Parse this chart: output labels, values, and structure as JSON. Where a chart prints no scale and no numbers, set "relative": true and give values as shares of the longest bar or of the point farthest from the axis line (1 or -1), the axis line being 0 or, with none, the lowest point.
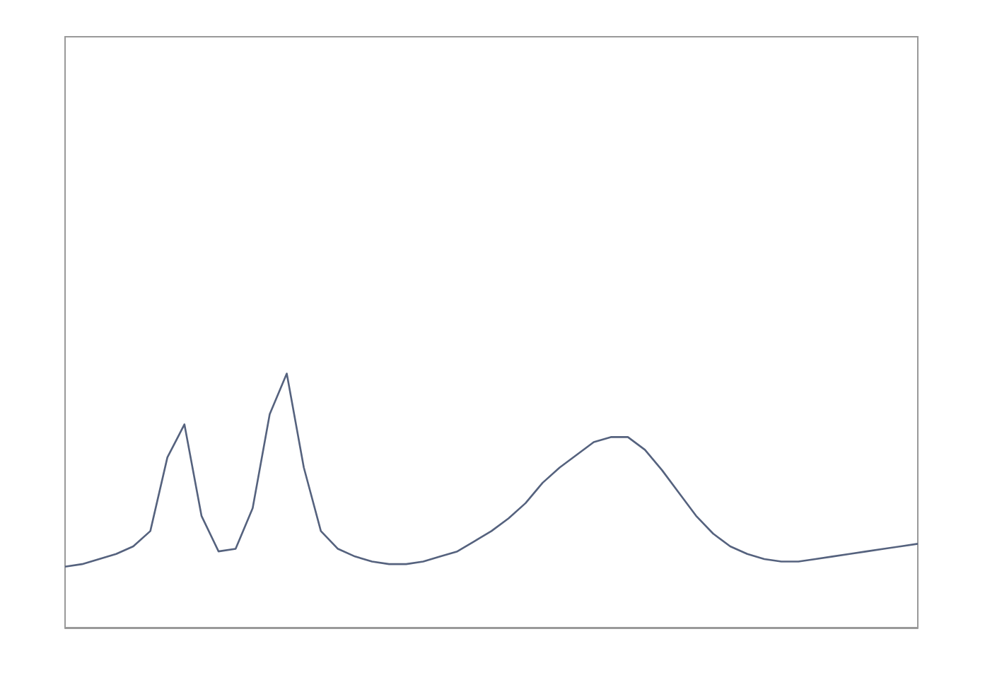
{
  "chart_data": {
    "type": "line",
    "relative": true,
    "categories": [
      null,
      null,
      null,
      null,
      null,
      null,
      null,
      null,
      null,
      null,
      null,
      null,
      null,
      null,
      null,
      null,
      null,
      null,
      null,
      null,
      null,
      null,
      null,
      null,
      null,
      null,
      null,
      null,
      null,
      null,
      null,
      null,
      null,
      null,
      null,
      null,
      null,
      null,
      null,
      null,
      null,
      null,
      null,
      null,
      null,
      null,
      null,
      null,
      null,
      null,
      null
    ],
    "series": [
      {
        "color": "#55627e",
        "values": [
          0.24,
          0.25,
          0.27,
          0.29,
          0.32,
          0.38,
          0.67,
          0.8,
          0.44,
          0.3,
          0.31,
          0.47,
          0.84,
          1,
          0.63,
          0.38,
          0.31,
          0.28,
          0.26,
          0.25,
          0.25,
          0.26,
          0.28,
          0.3,
          0.34,
          0.38,
          0.43,
          0.49,
          0.57,
          0.63,
          0.68,
          0.73,
          0.75,
          0.75,
          0.7,
          0.62,
          0.53,
          0.44,
          0.37,
          0.32,
          0.29,
          0.27,
          0.26,
          0.26,
          0.27,
          0.28,
          0.29,
          0.3,
          0.31,
          0.32,
          0.33
        ]
      }
    ],
    "grid": false,
    "marker": "none",
    "line_style": "solid"
  }
}
